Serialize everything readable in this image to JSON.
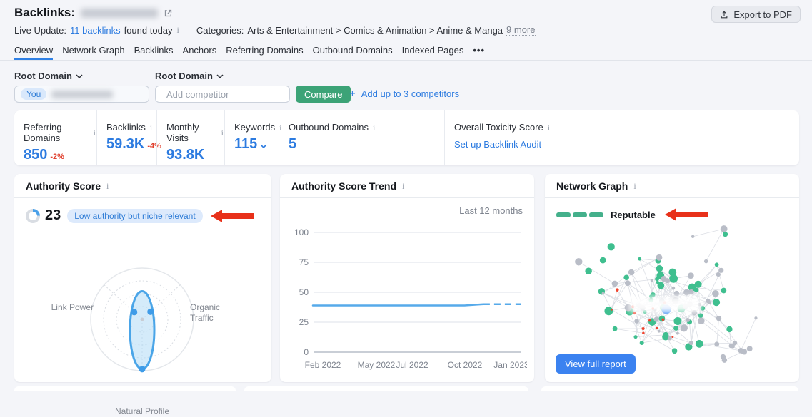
{
  "colors": {
    "accent_blue": "#2c7be0",
    "negative_red": "#e0402e",
    "compare_green": "#3ca377",
    "reputable_green": "#44b08b",
    "annotation_arrow_red": "#e8311a",
    "trend_line_blue": "#56aaea",
    "node_green": "#3fbf8f",
    "node_gray": "#b9bdc7",
    "node_red": "#f0442e",
    "view_report_blue": "#3b82f0"
  },
  "header": {
    "title": "Backlinks:",
    "export_button_label": "Export to PDF"
  },
  "live_update": {
    "label": "Live Update:",
    "backlinks_link": "11 backlinks",
    "found_text": "found today"
  },
  "categories": {
    "label": "Categories:",
    "path": "Arts & Entertainment > Comics & Animation > Anime & Manga",
    "more_link": "9 more"
  },
  "tabs": {
    "items": [
      {
        "label": "Overview",
        "active": true
      },
      {
        "label": "Network Graph",
        "active": false
      },
      {
        "label": "Backlinks",
        "active": false
      },
      {
        "label": "Anchors",
        "active": false
      },
      {
        "label": "Referring Domains",
        "active": false
      },
      {
        "label": "Outbound Domains",
        "active": false
      },
      {
        "label": "Indexed Pages",
        "active": false
      }
    ],
    "more_icon": "•••"
  },
  "filters": {
    "root_domain_label_you": "Root Domain",
    "root_domain_label_competitor": "Root Domain",
    "you_chip_label": "You",
    "competitor_placeholder": "Add competitor",
    "compare_button_label": "Compare",
    "plus_icon": "+",
    "add_competitors_label": "Add up to 3 competitors"
  },
  "metrics": {
    "items": [
      {
        "label": "Referring Domains",
        "value": "850",
        "delta": "-2%"
      },
      {
        "label": "Backlinks",
        "value": "59.3K",
        "delta": "-4%"
      },
      {
        "label": "Monthly Visits",
        "value": "93.8K",
        "delta": ""
      },
      {
        "label": "Keywords",
        "value": "115",
        "delta": ""
      },
      {
        "label": "Outbound Domains",
        "value": "5",
        "delta": ""
      },
      {
        "label": "Overall Toxicity Score",
        "link": "Set up Backlink Audit"
      }
    ]
  },
  "authority_card": {
    "title": "Authority Score",
    "score": "23",
    "badge": "Low authority but niche relevant"
  },
  "trend_card": {
    "title": "Authority Score Trend",
    "range_label": "Last 12 months"
  },
  "network_card": {
    "title": "Network Graph",
    "rating_label": "Reputable",
    "button_label": "View full report"
  },
  "chart_data": [
    {
      "type": "radar",
      "title": "Authority Score profile",
      "axes": [
        "Link Power",
        "Organic Traffic",
        "Natural Profile"
      ],
      "values": [
        21,
        22,
        97
      ],
      "max": 100,
      "grid": "dashed concentric rings, 3 spokes"
    },
    {
      "type": "line",
      "title": "Authority Score Trend",
      "x": [
        "Feb 2022",
        "Mar 2022",
        "Apr 2022",
        "May 2022",
        "Jun 2022",
        "Jul 2022",
        "Aug 2022",
        "Sep 2022",
        "Oct 2022",
        "Nov 2022",
        "Dec 2022",
        "Jan 2023"
      ],
      "values": [
        39,
        39,
        39,
        39,
        39,
        39,
        39,
        39,
        39,
        40,
        40,
        40
      ],
      "ylim": [
        0,
        100
      ],
      "yticks": [
        0,
        25,
        50,
        75,
        100
      ],
      "xticks": [
        "Feb 2022",
        "May 2022",
        "Jul 2022",
        "Oct 2022",
        "Jan 2023"
      ],
      "dashed_from_index": 9,
      "legend": "Last 12 months",
      "grid": "horizontal gridlines on"
    },
    {
      "type": "scatter",
      "title": "Network Graph",
      "node_groups": [
        {
          "name": "reputable-nodes",
          "color": "#3fbf8f",
          "count": 46
        },
        {
          "name": "neutral-nodes",
          "color": "#b9bdc7",
          "count": 54
        },
        {
          "name": "toxic-nodes",
          "color": "#f0442e",
          "count": 12
        }
      ],
      "center_highlight": "blurred domain label with blue node"
    }
  ]
}
